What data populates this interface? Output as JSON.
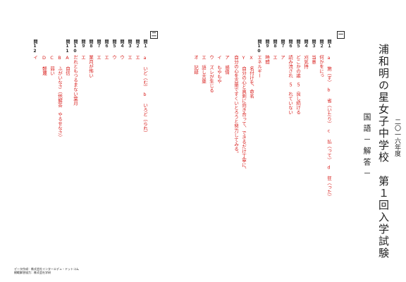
{
  "header": {
    "title": "浦和明の星女子中学校　第１回入学試験",
    "year": "二〇一六年度",
    "subject": "国語－解答－"
  },
  "sections": [
    {
      "label": "一",
      "questions": [
        {
          "label": "問１",
          "answer": "a 施（す）　b 省（いたり）　c 払（って）　d 狂（った）"
        },
        {
          "label": "問２",
          "answer": "何かをにっ"
        },
        {
          "label": "問３",
          "answer": "当意"
        },
        {
          "label": "問４",
          "answer": "刈気持"
        },
        {
          "label": "問５",
          "answer": "どこかの誰　５　良し続ける"
        },
        {
          "label": "問６",
          "answer": "読み流され　５　れていない"
        },
        {
          "label": "問７",
          "answer": "ア"
        },
        {
          "label": "問８",
          "answer": "エ"
        },
        {
          "label": "問９",
          "answer": "時間"
        },
        {
          "label": "問10",
          "answer": "エネルギー"
        },
        {
          "label": "",
          "answer": "X 名付けを、命名"
        },
        {
          "label": "",
          "answer": "Y 自分の心と真剣に向き合って、できるだけ丁寧に、"
        },
        {
          "label": "",
          "answer": "自分の心を言葉ですくいとろうと努力してみる。"
        },
        {
          "label": "",
          "answer": "ア 感情"
        },
        {
          "label": "",
          "answer": "イ もやもや"
        },
        {
          "label": "",
          "answer": "ウ ズレが生じる"
        },
        {
          "label": "",
          "answer": "エ 語し言葉"
        },
        {
          "label": "",
          "answer": "オ 記録"
        }
      ]
    },
    {
      "label": "二",
      "questions": [
        {
          "label": "問１",
          "answer": "a いど（む）　b いろど（られ）"
        },
        {
          "label": "問２",
          "answer": "エ"
        },
        {
          "label": "問３",
          "answer": "エ"
        },
        {
          "label": "問４",
          "answer": "ウ"
        },
        {
          "label": "問５",
          "answer": "ウ"
        },
        {
          "label": "問６",
          "answer": "エ"
        },
        {
          "label": "問７",
          "answer": "エ"
        },
        {
          "label": "問８",
          "answer": "業月が怖い"
        },
        {
          "label": "問９",
          "answer": "エ"
        },
        {
          "label": "問10",
          "answer": "だれともつるまない葉月"
        },
        {
          "label": "問11",
          "answer": "A 自信"
        },
        {
          "label": "",
          "answer": "B ふがいなさ（他解答　やるせなさ）"
        },
        {
          "label": "",
          "answer": "C 弱い"
        },
        {
          "label": "",
          "answer": "D 軽蔑"
        },
        {
          "label": "問12",
          "answer": "イ"
        }
      ]
    }
  ],
  "footer": {
    "line1": "データ作成：株式会社インターエデュ・ドットコム",
    "line2": "模範解答協力：株式会社学研"
  }
}
